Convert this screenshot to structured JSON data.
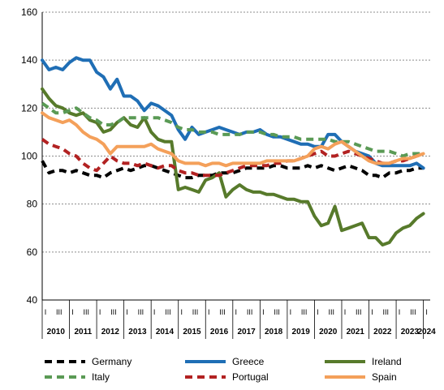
{
  "chart_data": {
    "type": "line",
    "title": "",
    "xlabel": "",
    "ylabel": "",
    "ylim": [
      40,
      160
    ],
    "yticks": [
      40,
      60,
      80,
      100,
      120,
      140,
      160
    ],
    "grid": true,
    "legend_position": "bottom",
    "quarter_labels": [
      "I",
      "III"
    ],
    "years": [
      "2010",
      "2011",
      "2012",
      "2013",
      "2014",
      "2015",
      "2016",
      "2017",
      "2018",
      "2019",
      "2020",
      "2021",
      "2022",
      "2023",
      "2024"
    ],
    "x": [
      2010.0,
      2010.25,
      2010.5,
      2010.75,
      2011.0,
      2011.25,
      2011.5,
      2011.75,
      2012.0,
      2012.25,
      2012.5,
      2012.75,
      2013.0,
      2013.25,
      2013.5,
      2013.75,
      2014.0,
      2014.25,
      2014.5,
      2014.75,
      2015.0,
      2015.25,
      2015.5,
      2015.75,
      2016.0,
      2016.25,
      2016.5,
      2016.75,
      2017.0,
      2017.25,
      2017.5,
      2017.75,
      2018.0,
      2018.25,
      2018.5,
      2018.75,
      2019.0,
      2019.25,
      2019.5,
      2019.75,
      2020.0,
      2020.25,
      2020.5,
      2020.75,
      2021.0,
      2021.25,
      2021.5,
      2021.75,
      2022.0,
      2022.25,
      2022.5,
      2022.75,
      2023.0,
      2023.25,
      2023.5,
      2023.75,
      2024.0
    ],
    "series": [
      {
        "name": "Germany",
        "color": "#000000",
        "style": "dashed",
        "values": [
          98,
          93,
          94,
          94,
          93,
          94,
          93,
          92,
          92,
          91,
          93,
          94,
          95,
          94,
          95,
          96,
          96,
          95,
          94,
          93,
          92,
          91,
          91,
          92,
          92,
          92,
          93,
          93,
          93,
          94,
          95,
          95,
          95,
          95,
          96,
          96,
          95,
          95,
          95,
          96,
          95,
          96,
          95,
          94,
          95,
          96,
          95,
          94,
          92,
          92,
          91,
          93,
          93,
          94,
          94,
          95,
          95
        ]
      },
      {
        "name": "Greece",
        "color": "#1f6eb5",
        "style": "solid",
        "values": [
          140,
          136,
          137,
          136,
          139,
          141,
          140,
          140,
          135,
          133,
          128,
          132,
          125,
          125,
          123,
          119,
          122,
          121,
          119,
          117,
          111,
          107,
          112,
          109,
          110,
          111,
          112,
          111,
          110,
          109,
          110,
          110,
          111,
          109,
          108,
          108,
          107,
          106,
          105,
          105,
          104,
          104,
          109,
          109,
          106,
          104,
          102,
          101,
          100,
          97,
          96,
          96,
          96,
          96,
          96,
          97,
          95
        ]
      },
      {
        "name": "Ireland",
        "color": "#577a2b",
        "style": "solid",
        "values": [
          128,
          124,
          121,
          120,
          118,
          117,
          118,
          115,
          114,
          110,
          111,
          114,
          116,
          113,
          112,
          116,
          110,
          107,
          106,
          106,
          86,
          87,
          86,
          85,
          90,
          91,
          93,
          83,
          86,
          88,
          86,
          85,
          85,
          84,
          84,
          83,
          82,
          82,
          81,
          81,
          75,
          71,
          72,
          79,
          69,
          70,
          71,
          72,
          66,
          66,
          63,
          64,
          68,
          70,
          71,
          74,
          76
        ]
      },
      {
        "name": "Italy",
        "color": "#5a9a55",
        "style": "dashed",
        "values": [
          122,
          120,
          118,
          118,
          119,
          120,
          118,
          116,
          115,
          113,
          113,
          114,
          116,
          116,
          116,
          116,
          116,
          116,
          115,
          114,
          112,
          111,
          111,
          110,
          110,
          110,
          109,
          109,
          109,
          109,
          110,
          110,
          110,
          109,
          109,
          108,
          108,
          108,
          107,
          107,
          107,
          107,
          107,
          106,
          106,
          106,
          105,
          104,
          103,
          102,
          102,
          102,
          101,
          100,
          101,
          101,
          101
        ]
      },
      {
        "name": "Portugal",
        "color": "#b22222",
        "style": "dashed",
        "values": [
          107,
          105,
          104,
          103,
          101,
          100,
          97,
          95,
          94,
          97,
          100,
          98,
          97,
          97,
          96,
          97,
          96,
          95,
          96,
          96,
          94,
          93,
          93,
          92,
          92,
          92,
          92,
          93,
          94,
          95,
          96,
          96,
          96,
          96,
          97,
          97,
          98,
          98,
          99,
          100,
          101,
          102,
          100,
          100,
          101,
          102,
          101,
          100,
          99,
          98,
          97,
          97,
          98,
          98,
          99,
          100,
          101
        ]
      },
      {
        "name": "Spain",
        "color": "#f4a05a",
        "style": "solid",
        "values": [
          118,
          116,
          115,
          114,
          115,
          113,
          110,
          108,
          107,
          105,
          101,
          104,
          104,
          104,
          104,
          104,
          105,
          103,
          102,
          101,
          98,
          97,
          97,
          97,
          96,
          97,
          97,
          96,
          97,
          97,
          97,
          97,
          97,
          98,
          98,
          98,
          98,
          98,
          99,
          100,
          103,
          104,
          103,
          105,
          106,
          104,
          102,
          100,
          98,
          97,
          97,
          97,
          98,
          99,
          99,
          100,
          101
        ]
      }
    ]
  }
}
